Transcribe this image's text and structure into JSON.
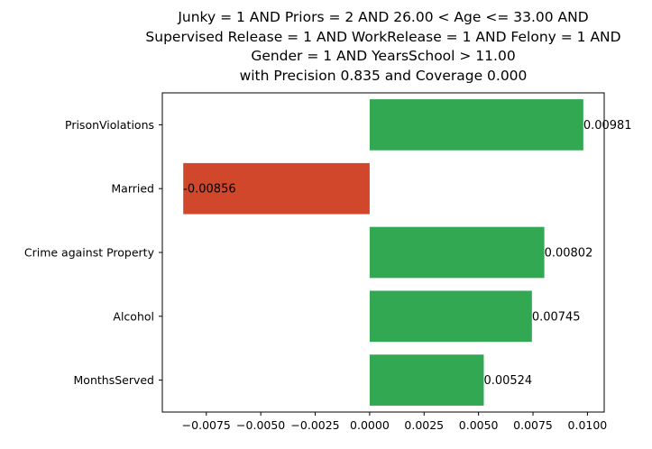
{
  "chart_data": {
    "type": "bar",
    "orientation": "horizontal",
    "title_lines": [
      "Junky = 1 AND Priors = 2 AND 26.00 < Age <= 33.00 AND",
      "Supervised Release = 1 AND WorkRelease = 1 AND Felony = 1 AND",
      "Gender = 1 AND YearsSchool > 11.00",
      "with Precision 0.835 and Coverage 0.000"
    ],
    "categories": [
      "PrisonViolations",
      "Married",
      "Crime against Property",
      "Alcohol",
      "MonthsServed"
    ],
    "values": [
      0.00981,
      -0.00856,
      0.00802,
      0.00745,
      0.00524
    ],
    "data_labels": [
      "0.00981",
      "-0.00856",
      "0.00802",
      "0.00745",
      "0.00524"
    ],
    "xlim": [
      -0.00952,
      0.01077
    ],
    "x_ticks": [
      -0.0075,
      -0.005,
      -0.0025,
      0,
      0.0025,
      0.005,
      0.0075,
      0.01
    ],
    "x_tick_labels": [
      "−0.0075",
      "−0.0050",
      "−0.0025",
      "0.0000",
      "0.0025",
      "0.0050",
      "0.0075",
      "0.0100"
    ],
    "xlabel": "",
    "ylabel": "",
    "grid": false,
    "colors": {
      "positive": "#33a852",
      "negative": "#d1472b"
    }
  }
}
